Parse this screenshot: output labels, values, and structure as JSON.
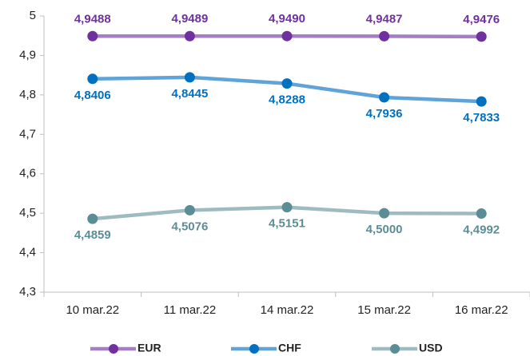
{
  "chart_data": {
    "type": "line",
    "categories": [
      "10 mar.22",
      "11 mar.22",
      "14 mar.22",
      "15 mar.22",
      "16 mar.22"
    ],
    "series": [
      {
        "name": "EUR",
        "color": "#7030a0",
        "line_color": "#a57dc8",
        "label_position": "above",
        "values": [
          4.9488,
          4.9489,
          4.949,
          4.9487,
          4.9476
        ],
        "value_labels": [
          "4,9488",
          "4,9489",
          "4,9490",
          "4,9487",
          "4,9476"
        ]
      },
      {
        "name": "CHF",
        "color": "#0070c0",
        "line_color": "#5fa3d8",
        "label_position": "below",
        "values": [
          4.8406,
          4.8445,
          4.8288,
          4.7936,
          4.7833
        ],
        "value_labels": [
          "4,8406",
          "4,8445",
          "4,8288",
          "4,7936",
          "4,7833"
        ]
      },
      {
        "name": "USD",
        "color": "#5b8d96",
        "line_color": "#9ebbc1",
        "label_position": "below",
        "values": [
          4.4859,
          4.5076,
          4.5151,
          4.5,
          4.4992
        ],
        "value_labels": [
          "4,4859",
          "4,5076",
          "4,5151",
          "4,5000",
          "4,4992"
        ]
      }
    ],
    "ylim": [
      4.3,
      5
    ],
    "yticks": [
      {
        "value": 4.3,
        "label": "4,3"
      },
      {
        "value": 4.4,
        "label": "4,4"
      },
      {
        "value": 4.5,
        "label": "4,5"
      },
      {
        "value": 4.6,
        "label": "4,6"
      },
      {
        "value": 4.7,
        "label": "4,7"
      },
      {
        "value": 4.8,
        "label": "4,8"
      },
      {
        "value": 4.9,
        "label": "4,9"
      },
      5
    ],
    "grid": false,
    "legend": "bottom"
  }
}
